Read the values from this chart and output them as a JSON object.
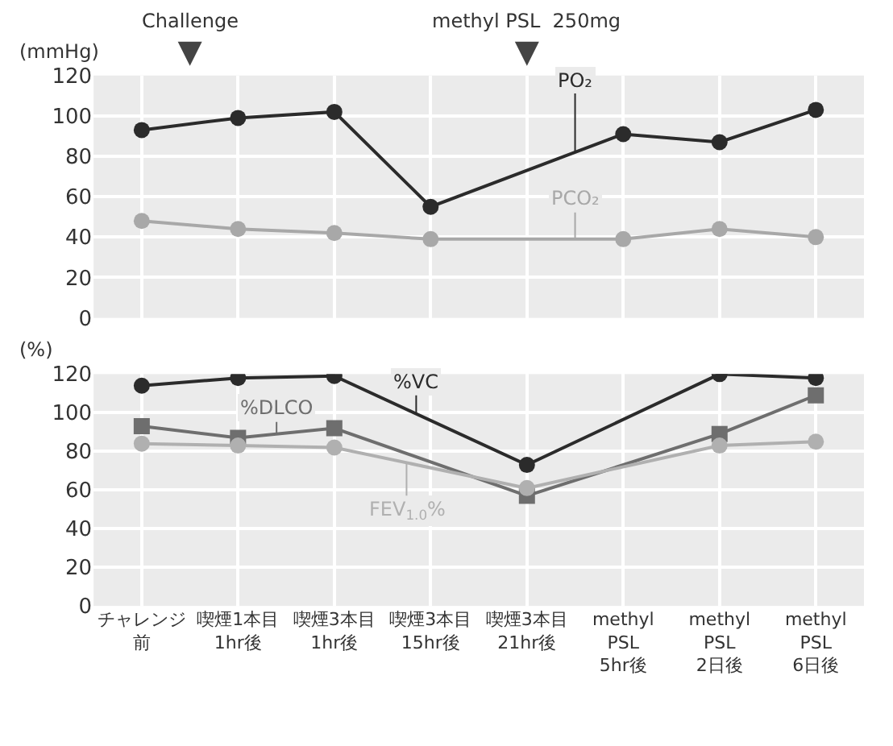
{
  "chart_data": [
    {
      "type": "line",
      "ylabel": "(mmHg)",
      "categories": [
        "チャレンジ前",
        "喫煙1本目\n1hr後",
        "喫煙3本目\n1hr後",
        "喫煙3本目\n15hr後",
        "喫煙3本目\n21hr後",
        "methyl\nPSL\n5hr後",
        "methyl\nPSL\n2日後",
        "methyl\nPSL\n6日後"
      ],
      "series": [
        {
          "name": "PO₂",
          "color": "#2b2b2b",
          "marker": "circle",
          "values": [
            93,
            99,
            102,
            55,
            null,
            91,
            87,
            103
          ]
        },
        {
          "name": "PCO₂",
          "color": "#a8a8a8",
          "marker": "circle",
          "values": [
            48,
            44,
            42,
            39,
            null,
            39,
            44,
            40
          ]
        }
      ],
      "ylim": [
        0,
        120
      ],
      "yticks": [
        0,
        20,
        40,
        60,
        80,
        100,
        120
      ],
      "grid": true,
      "tick_labels": "y",
      "annotations": [
        "Challenge",
        "methyl PSL  250mg"
      ]
    },
    {
      "type": "line",
      "ylabel": "(%)",
      "categories": [
        "チャレンジ前",
        "喫煙1本目\n1hr後",
        "喫煙3本目\n1hr後",
        "喫煙3本目\n15hr後",
        "喫煙3本目\n21hr後",
        "methyl\nPSL\n5hr後",
        "methyl\nPSL\n2日後",
        "methyl\nPSL\n6日後"
      ],
      "series": [
        {
          "name": "%VC",
          "color": "#2b2b2b",
          "marker": "circle",
          "values": [
            114,
            118,
            119,
            null,
            73,
            null,
            120,
            118
          ]
        },
        {
          "name": "%DLCO",
          "color": "#6e6e6e",
          "marker": "square",
          "values": [
            93,
            87,
            92,
            null,
            57,
            null,
            89,
            109
          ]
        },
        {
          "name": "FEV$_{1.0}$%",
          "color": "#b0b0b0",
          "marker": "circle",
          "values": [
            84,
            83,
            82,
            null,
            61,
            null,
            83,
            85
          ]
        }
      ],
      "ylim": [
        0,
        120
      ],
      "yticks": [
        0,
        20,
        40,
        60,
        80,
        100,
        120
      ],
      "grid": true
    }
  ]
}
